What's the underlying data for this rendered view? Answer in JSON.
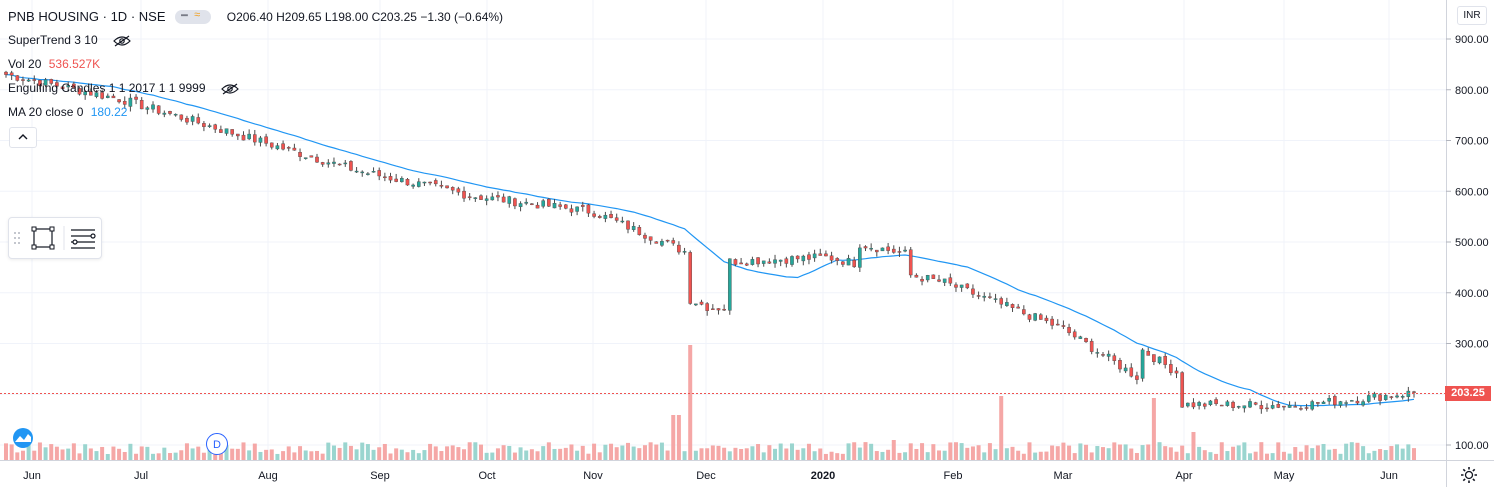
{
  "header": {
    "symbol": "PNB HOUSING",
    "interval": "1D",
    "exchange": "NSE",
    "separator": " · ",
    "open": "O206.40",
    "high": "H209.65",
    "low": "L198.00",
    "close": "C203.25",
    "change": "−1.30 (−0.64%)"
  },
  "indicators": {
    "supertrend": "SuperTrend 3 10",
    "volume_label": "Vol 20",
    "volume_value": "536.527K",
    "engulfing": "Engulfing Candles 1 1 2017 1 1 9999",
    "ma_label": "MA 20 close 0",
    "ma_value": "180.22"
  },
  "price_scale": {
    "currency": "INR",
    "ticks": [
      "900.00",
      "800.00",
      "700.00",
      "600.00",
      "500.00",
      "400.00",
      "300.00",
      "200.00",
      "100.00"
    ],
    "last_price": "203.25"
  },
  "time_scale": {
    "labels": [
      "Jun",
      "Jul",
      "Aug",
      "Sep",
      "Oct",
      "Nov",
      "Dec",
      "2020",
      "Feb",
      "Mar",
      "Apr",
      "May",
      "Jun"
    ]
  },
  "markers": {
    "dividend_badge": "D"
  },
  "colors": {
    "up": "#26a69a",
    "down": "#ef5350",
    "ma": "#2196f3",
    "vol_up": "#9ad5cf",
    "vol_down": "#f5a7a6",
    "grid": "#f0f3fa"
  },
  "chart_data": {
    "type": "candlestick",
    "y_range": [
      90,
      930
    ],
    "monthly_anchor_closes": [
      {
        "month": "Jun",
        "close": 830
      },
      {
        "month": "Jul",
        "close": 780
      },
      {
        "month": "Aug",
        "close": 710
      },
      {
        "month": "Sep",
        "close": 640
      },
      {
        "month": "Oct",
        "close": 590
      },
      {
        "month": "Nov",
        "close": 560
      },
      {
        "month": "Dec",
        "close": 460
      },
      {
        "month": "2020",
        "close": 470
      },
      {
        "month": "Feb",
        "close": 420
      },
      {
        "month": "Mar",
        "close": 330
      },
      {
        "month": "Apr",
        "close": 180
      },
      {
        "month": "May",
        "close": 178
      },
      {
        "month": "Jun",
        "close": 203.25
      }
    ],
    "last": {
      "open": 206.4,
      "high": 209.65,
      "low": 198.0,
      "close": 203.25
    }
  }
}
